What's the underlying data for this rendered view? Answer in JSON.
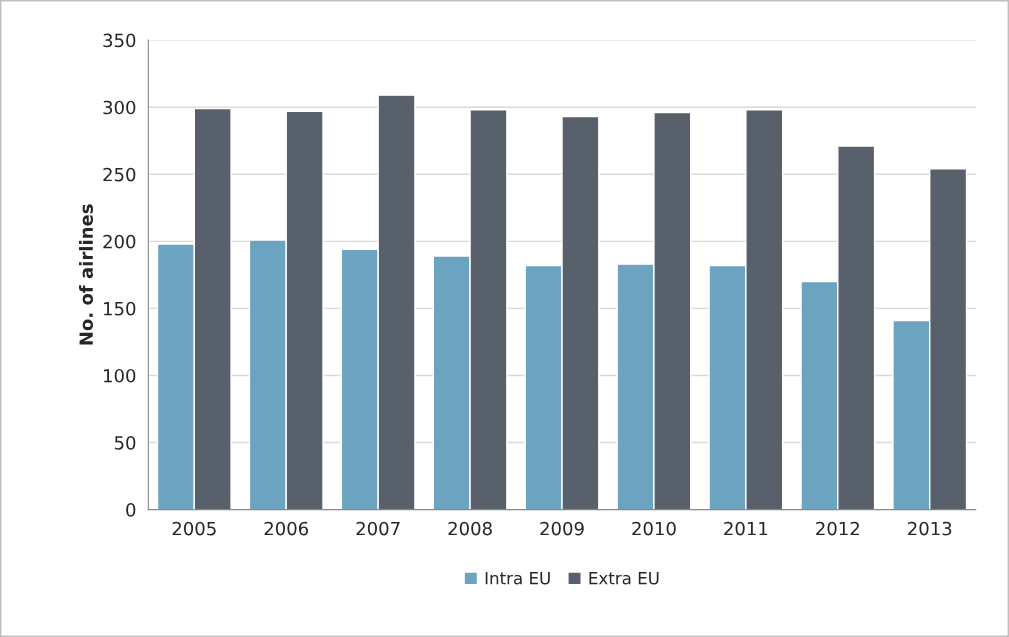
{
  "chart_data": {
    "type": "bar",
    "ylabel": "No. of airlines",
    "categories": [
      "2005",
      "2006",
      "2007",
      "2008",
      "2009",
      "2010",
      "2011",
      "2012",
      "2013"
    ],
    "series": [
      {
        "name": "Intra EU",
        "color": "#6ba3c0",
        "values": [
          198,
          201,
          194,
          189,
          182,
          183,
          182,
          170,
          141
        ]
      },
      {
        "name": "Extra EU",
        "color": "#58606b",
        "values": [
          299,
          297,
          309,
          298,
          293,
          296,
          298,
          271,
          254
        ]
      }
    ],
    "ylim": [
      0,
      350
    ],
    "yticks": [
      0,
      50,
      100,
      150,
      200,
      250,
      300,
      350
    ],
    "grid": "y",
    "legend": "bottom"
  }
}
